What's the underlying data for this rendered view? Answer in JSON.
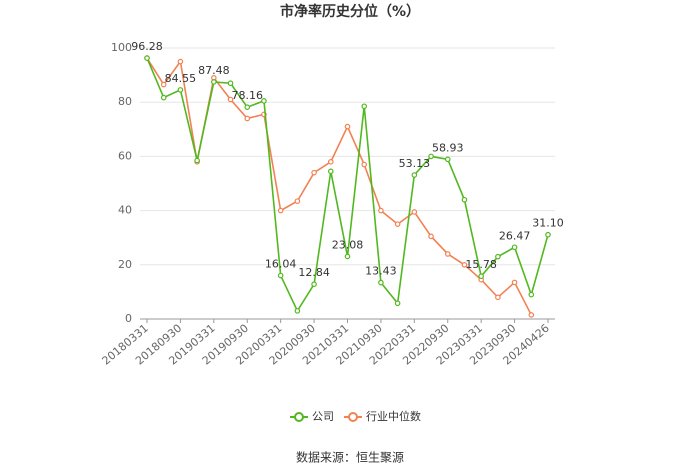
{
  "chart_data": {
    "type": "line",
    "title": "市净率历史分位（%）",
    "categories": [
      "20180331",
      null,
      "20180930",
      null,
      "20190331",
      null,
      "20190930",
      null,
      "20200331",
      null,
      "20200930",
      null,
      "20210331",
      null,
      "20210930",
      null,
      "20220331",
      null,
      "20220930",
      null,
      "20230331",
      null,
      "20230930",
      null,
      "20240426"
    ],
    "series": [
      {
        "name": "公司",
        "color": "#52b81f",
        "values": [
          96.28,
          81.7,
          84.55,
          58.5,
          87.48,
          87,
          78.16,
          80.5,
          16.04,
          3,
          12.84,
          54.5,
          23.08,
          78.5,
          13.43,
          5.8,
          53.13,
          60,
          58.93,
          44,
          15.78,
          23,
          26.47,
          9,
          31.1
        ],
        "value_labels": [
          "96.28",
          null,
          "84.55",
          null,
          "87.48",
          null,
          "78.16",
          null,
          "16.04",
          null,
          "12.84",
          null,
          "23.08",
          null,
          "13.43",
          null,
          "53.13",
          null,
          "58.93",
          null,
          "15.78",
          null,
          "26.47",
          null,
          "31.10"
        ]
      },
      {
        "name": "行业中位数",
        "color": "#f28153",
        "values": [
          96.28,
          86.5,
          95,
          58,
          89,
          81,
          74,
          75.5,
          40,
          43.5,
          54,
          58,
          71,
          57,
          40,
          35,
          39.5,
          30.5,
          24,
          20,
          14.5,
          8,
          13.5,
          1.5,
          null
        ]
      }
    ],
    "ylim": [
      0,
      100
    ],
    "yticks": [
      0,
      20,
      40,
      60,
      80,
      100
    ],
    "grid": true,
    "legend": "bottom",
    "source": "数据来源：恒生聚源"
  }
}
